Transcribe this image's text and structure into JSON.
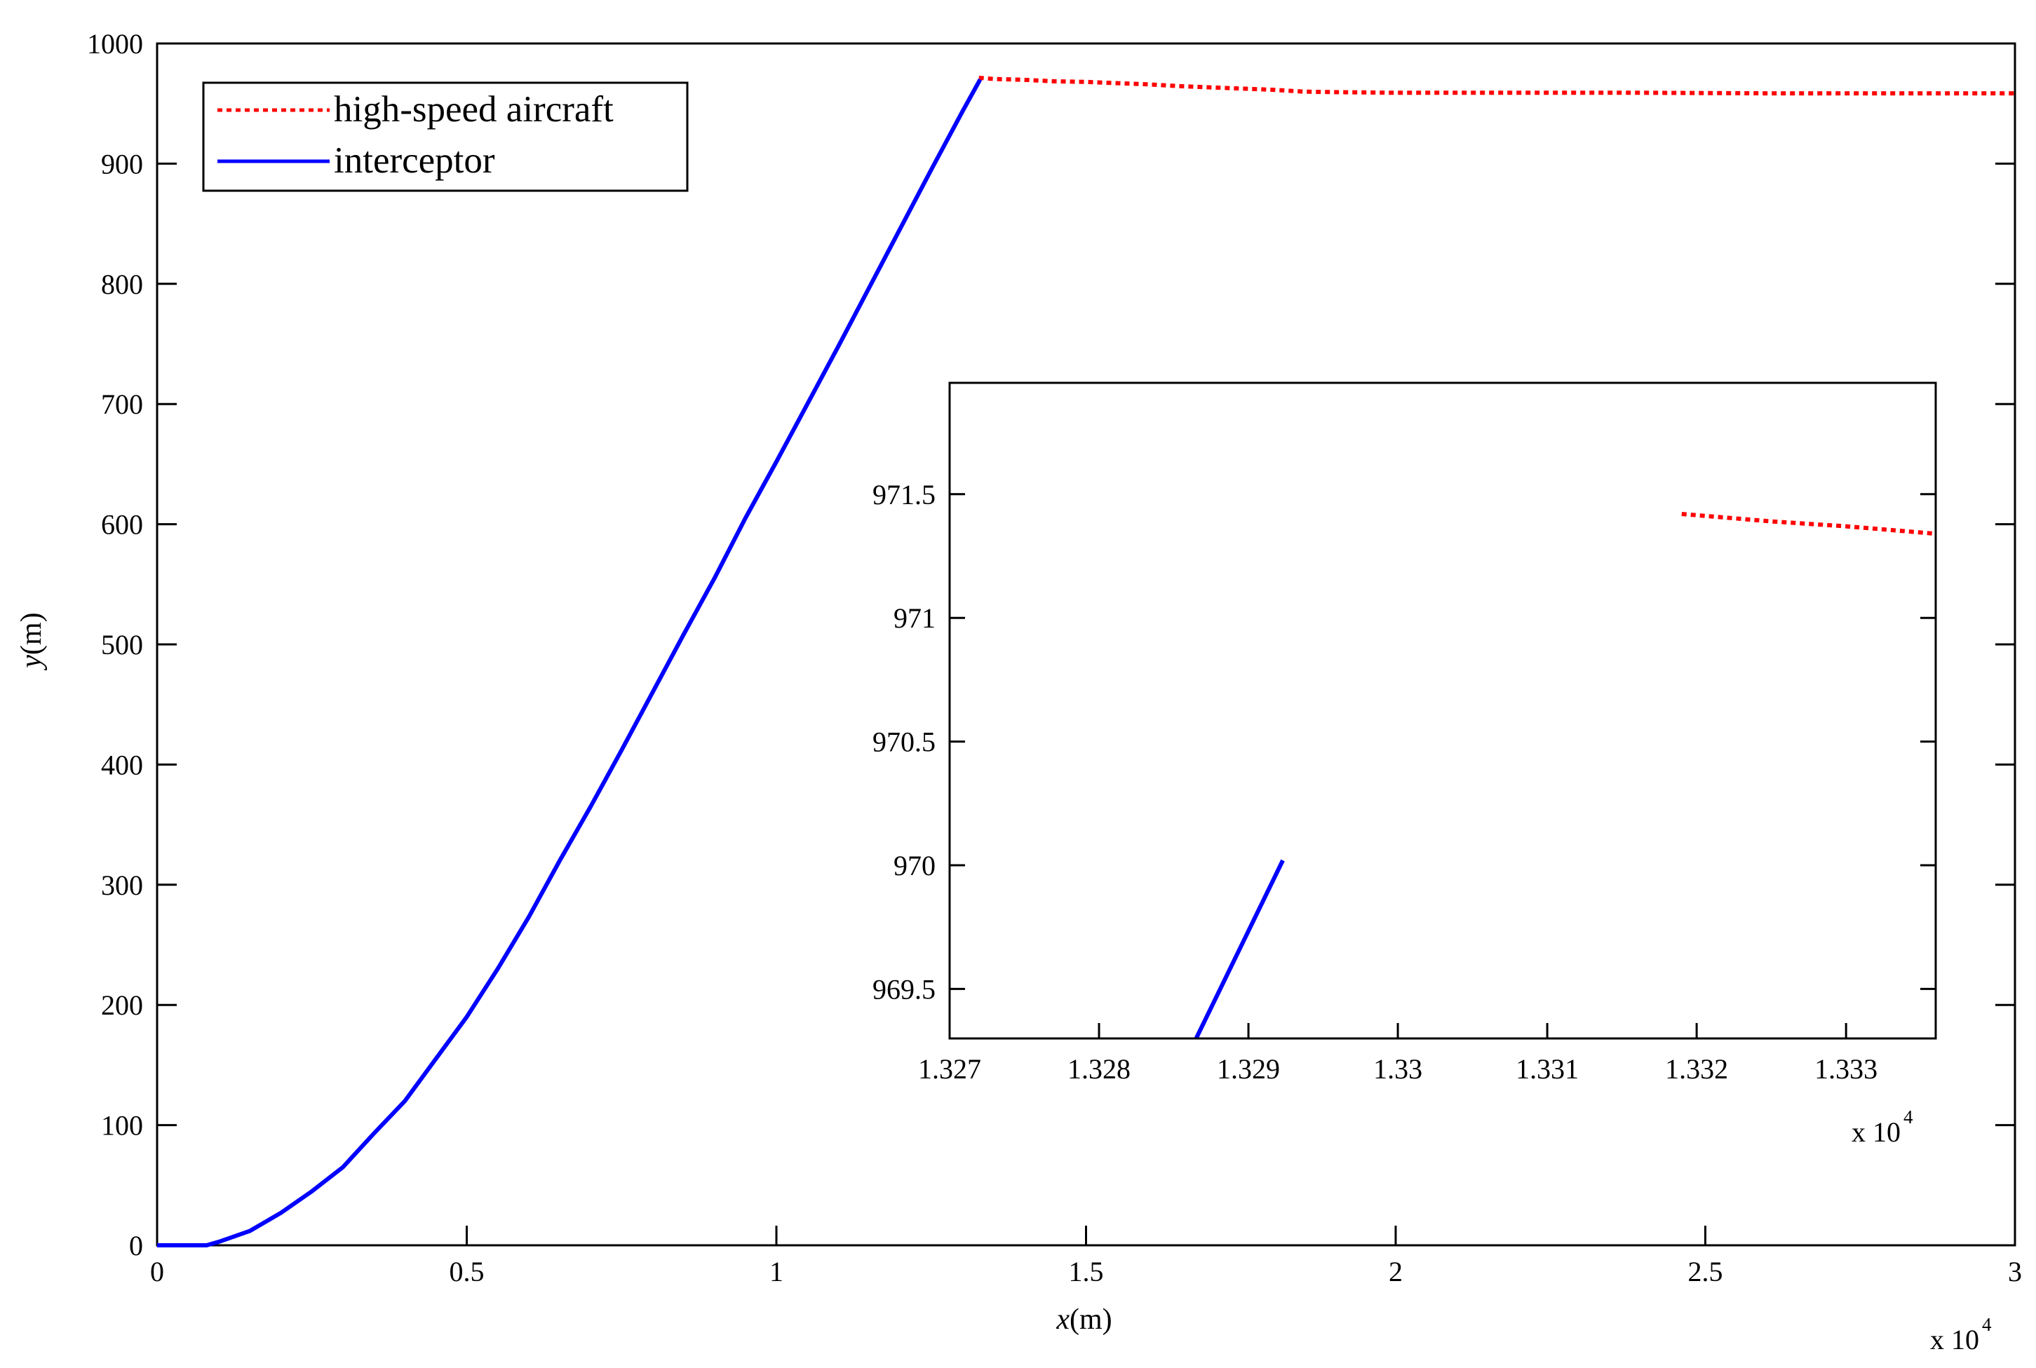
{
  "chart_data": [
    {
      "type": "line",
      "xlabel": "x(m)",
      "ylabel": "y(m)",
      "x_multiplier": "x 10^4",
      "xlim": [
        0,
        30000
      ],
      "ylim": [
        0,
        1000
      ],
      "xticks": [
        0,
        5000,
        10000,
        15000,
        20000,
        25000,
        30000
      ],
      "xtick_labels": [
        "0",
        "0.5",
        "1",
        "1.5",
        "2",
        "2.5",
        "3"
      ],
      "yticks": [
        0,
        100,
        200,
        300,
        400,
        500,
        600,
        700,
        800,
        900,
        1000
      ],
      "ytick_labels": [
        "0",
        "100",
        "200",
        "300",
        "400",
        "500",
        "600",
        "700",
        "800",
        "900",
        "1000"
      ],
      "grid": false,
      "legend_position": "top-left",
      "series": [
        {
          "name": "high-speed aircraft",
          "color": "#ff0000",
          "style": "dotted",
          "x": [
            13270,
            13500,
            14000,
            14500,
            15000,
            15500,
            16000,
            16500,
            17000,
            17500,
            18000,
            18500,
            19000,
            20000,
            22000,
            24000,
            26000,
            28000,
            30000
          ],
          "y": [
            971.4,
            970.5,
            969.8,
            968.5,
            968.0,
            967.0,
            966.0,
            964.5,
            963.5,
            962.5,
            961.5,
            960.0,
            959.5,
            959.0,
            959.0,
            959.0,
            958.5,
            958.5,
            958.5
          ]
        },
        {
          "name": "interceptor",
          "color": "#0000ff",
          "style": "solid",
          "x": [
            0,
            800,
            1000,
            1500,
            2000,
            2500,
            3000,
            3500,
            4000,
            4500,
            5000,
            5500,
            6000,
            6500,
            7000,
            7500,
            8000,
            8500,
            9000,
            9500,
            10000,
            10500,
            11000,
            11500,
            12000,
            12500,
            13000,
            13290
          ],
          "y": [
            0,
            0,
            3,
            12,
            27,
            45,
            65,
            93,
            120,
            155,
            190,
            230,
            273,
            320,
            365,
            412,
            460,
            508,
            555,
            605,
            652,
            700,
            748,
            797,
            846,
            895,
            943,
            970
          ]
        }
      ]
    },
    {
      "type": "line",
      "inset": true,
      "x_multiplier": "x 10^4",
      "xlim": [
        13270,
        13336
      ],
      "ylim": [
        969.3,
        971.95
      ],
      "xticks": [
        13270,
        13280,
        13290,
        13300,
        13310,
        13320,
        13330
      ],
      "xtick_labels": [
        "1.327",
        "1.328",
        "1.329",
        "1.33",
        "1.331",
        "1.332",
        "1.333"
      ],
      "yticks": [
        969.5,
        970,
        970.5,
        971,
        971.5
      ],
      "ytick_labels": [
        "969.5",
        "970",
        "970.5",
        "971",
        "971.5"
      ],
      "grid": false,
      "series": [
        {
          "name": "high-speed aircraft",
          "color": "#ff0000",
          "style": "dotted",
          "x": [
            13319,
            13325,
            13330,
            13336
          ],
          "y": [
            971.42,
            971.39,
            971.37,
            971.34
          ]
        },
        {
          "name": "interceptor",
          "color": "#0000ff",
          "style": "solid",
          "x": [
            13286.5,
            13292.3
          ],
          "y": [
            969.3,
            970.02
          ]
        }
      ]
    }
  ]
}
